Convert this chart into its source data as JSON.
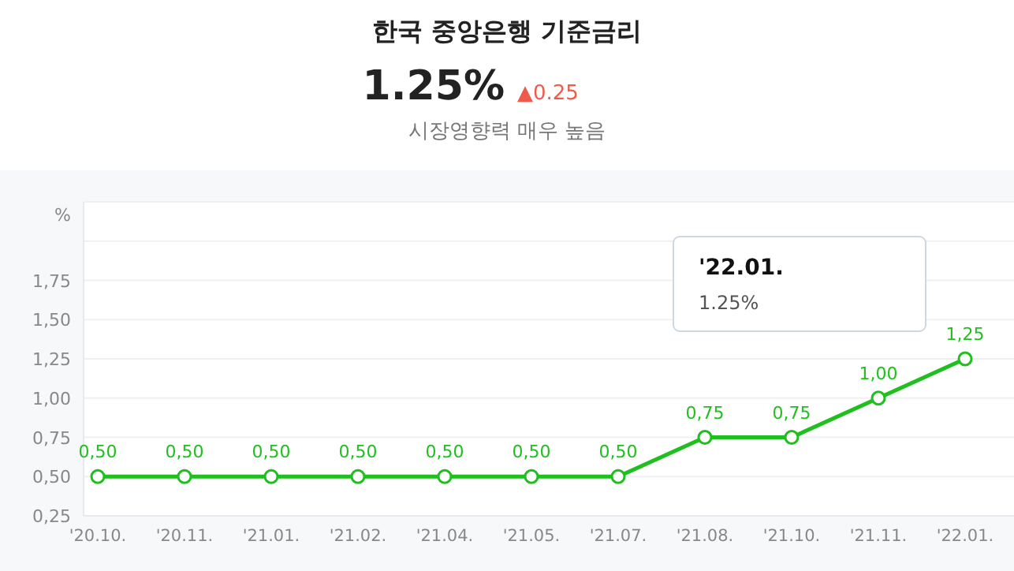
{
  "chart_data": {
    "type": "line",
    "title": "한국 중앙은행 기준금리",
    "subtitle": "1.25%",
    "ylabel": "%",
    "categories": [
      "'20.10.",
      "'20.11.",
      "'21.01.",
      "'21.02.",
      "'21.04.",
      "'21.05.",
      "'21.07.",
      "'21.08.",
      "'21.10.",
      "'21.11.",
      "'22.01."
    ],
    "series": [
      {
        "color": "#1fbf1f",
        "values": [
          0.5,
          0.5,
          0.5,
          0.5,
          0.5,
          0.5,
          0.5,
          0.75,
          0.75,
          1.0,
          1.25
        ],
        "value_labels": [
          "0,50",
          "0,50",
          "0,50",
          "0,50",
          "0,50",
          "0,50",
          "0,50",
          "0,75",
          "0,75",
          "1,00",
          "1,25"
        ]
      }
    ],
    "ylim": [
      0.25,
      2.25
    ],
    "yticks": [
      {
        "value": 0.25,
        "label": "0,25"
      },
      {
        "value": 0.5,
        "label": "0,50"
      },
      {
        "value": 0.75,
        "label": "0,75"
      },
      {
        "value": 1.0,
        "label": "1,00"
      },
      {
        "value": 1.25,
        "label": "1,25"
      },
      {
        "value": 1.5,
        "label": "1,50"
      },
      {
        "value": 1.75,
        "label": "1,75"
      },
      {
        "value": 2.0,
        "label": null
      },
      {
        "value": 2.25,
        "label": null
      }
    ],
    "grid": "y",
    "marker": "circle",
    "line_style": "solid",
    "annotations": [
      "▲0.25",
      "시장영향력 매우 높음",
      "'22.01.",
      "1.25%"
    ]
  }
}
